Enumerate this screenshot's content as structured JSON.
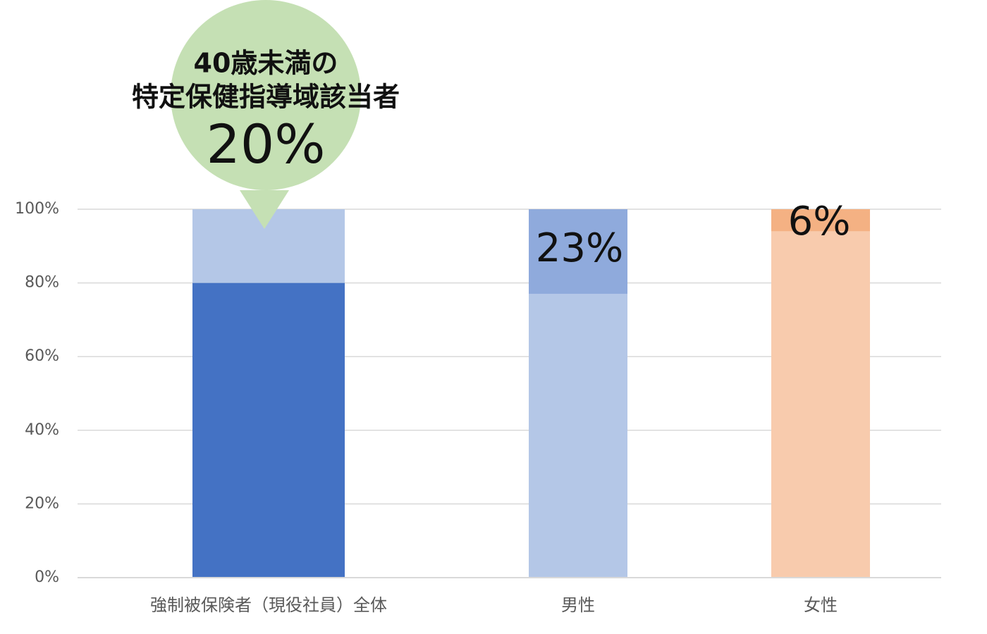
{
  "chart_data": {
    "type": "stacked_bar",
    "annotation": [
      "40歳未満の",
      "特定保健指導域該当者"
    ],
    "categories": [
      "強制被保険者（現役社員）全体",
      "男性",
      "女性"
    ],
    "series": [
      {
        "colors": [
          "#4472c4",
          "#b4c7e7",
          "#f8cbad"
        ],
        "values": [
          80,
          77,
          94
        ]
      },
      {
        "colors": [
          "#b4c7e7",
          "#8faadc",
          "#f4b183"
        ],
        "values": [
          20,
          23,
          6
        ],
        "value_labels": [
          "20%",
          "23%",
          "6%"
        ]
      }
    ],
    "ylim": [
      0,
      100
    ],
    "yticks": [
      {
        "value": 0,
        "label": "0%"
      },
      {
        "value": 20,
        "label": "20%"
      },
      {
        "value": 40,
        "label": "40%"
      },
      {
        "value": 60,
        "label": "60%"
      },
      {
        "value": 80,
        "label": "80%"
      },
      {
        "value": 100,
        "label": "100%"
      }
    ],
    "grid": true,
    "callout_color": "#c5e0b4"
  }
}
